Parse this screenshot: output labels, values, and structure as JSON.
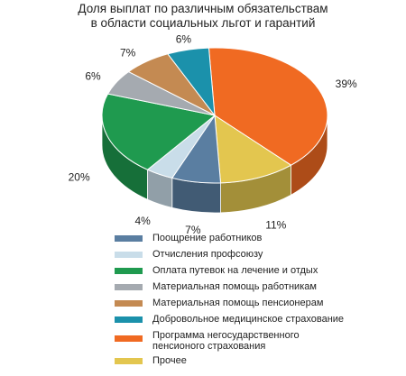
{
  "chart_data": {
    "type": "pie",
    "title_lines": [
      "Доля выплат по различным обязательствам",
      "в области социальных льгот и гарантий"
    ],
    "slices": [
      {
        "label": "Программа негосударственного пенсионого страхования",
        "legend_lines": [
          "Программа негосударственного",
          "пенсионого страхования"
        ],
        "value": 39,
        "pct_label": "39%",
        "color": "#f06a22"
      },
      {
        "label": "Прочее",
        "legend_lines": [
          "Прочее"
        ],
        "value": 11,
        "pct_label": "11%",
        "color": "#e3c64f"
      },
      {
        "label": "Поощрение работников",
        "legend_lines": [
          "Поощрение работников"
        ],
        "value": 7,
        "pct_label": "7%",
        "color": "#5a7ea1"
      },
      {
        "label": "Отчисления профсоюзу",
        "legend_lines": [
          "Отчисления профсоюзу"
        ],
        "value": 4,
        "pct_label": "4%",
        "color": "#c9dde9"
      },
      {
        "label": "Оплата путевок на лечение и отдых",
        "legend_lines": [
          "Оплата путевок на лечение и отдых"
        ],
        "value": 20,
        "pct_label": "20%",
        "color": "#1f9a4f"
      },
      {
        "label": "Материальная помощь работникам",
        "legend_lines": [
          "Материальная помощь работникам"
        ],
        "value": 6,
        "pct_label": "6%",
        "color": "#a5aab0"
      },
      {
        "label": "Материальная помощь пенсионерам",
        "legend_lines": [
          "Материальная помощь пенсионерам"
        ],
        "value": 7,
        "pct_label": "7%",
        "color": "#c48a52"
      },
      {
        "label": "Добровольное медицинское страхование",
        "legend_lines": [
          "Добровольное медицинское страхование"
        ],
        "value": 6,
        "pct_label": "6%",
        "color": "#1b91ab"
      }
    ],
    "legend_order": [
      "Поощрение работников",
      "Отчисления профсоюзу",
      "Оплата путевок на лечение и отдых",
      "Материальная помощь работникам",
      "Материальная помощь пенсионерам",
      "Добровольное медицинское страхование",
      "Программа негосударственного пенсионого страхования",
      "Прочее"
    ],
    "legend_placement": "bottom",
    "style": "3d-pie"
  }
}
